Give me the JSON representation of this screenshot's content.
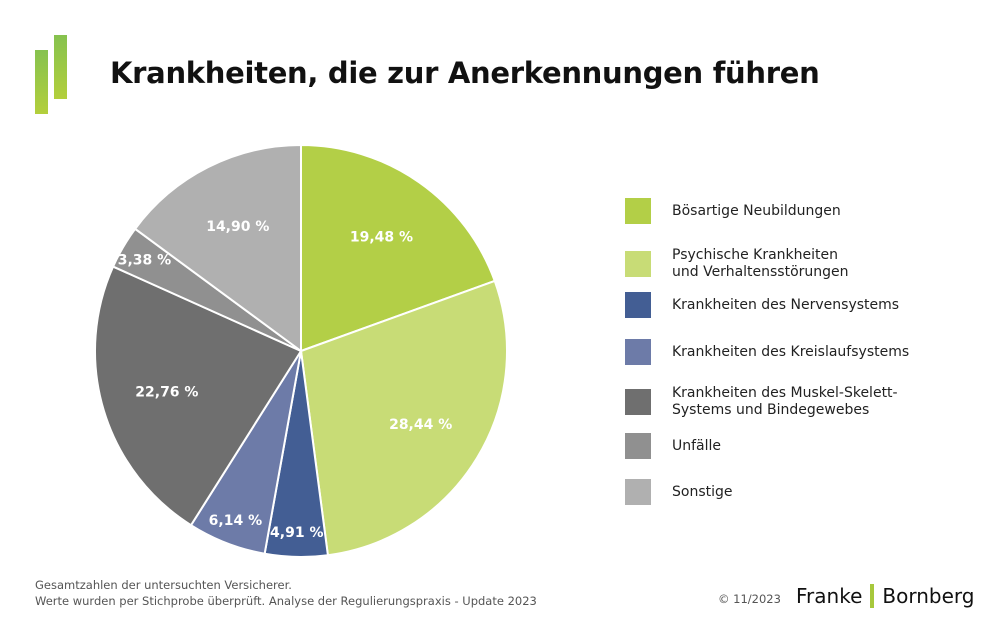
{
  "title": "Krankheiten, die zur Anerkennungen führen",
  "chart_data": {
    "type": "pie",
    "start": "top, clockwise",
    "slices": [
      {
        "name": "Bösartige Neubildungen",
        "value": 19.48,
        "label": "19,48 %",
        "color": "#b3cf47"
      },
      {
        "name": "Psychische Krankheiten\nund Verhaltensstörungen",
        "value": 28.44,
        "label": "28,44 %",
        "color": "#c8dc76"
      },
      {
        "name": "Krankheiten des Nervensystems",
        "value": 4.91,
        "label": "4,91 %",
        "color": "#435e94"
      },
      {
        "name": "Krankheiten des Kreislaufsystems",
        "value": 6.14,
        "label": "6,14 %",
        "color": "#6d7ba8"
      },
      {
        "name": "Krankheiten des Muskel-Skelett-\nSystems und Bindegewebes",
        "value": 22.76,
        "label": "22,76 %",
        "color": "#6f6f6f"
      },
      {
        "name": "Unfälle",
        "value": 3.38,
        "label": "3,38 %",
        "color": "#909090"
      },
      {
        "name": "Sonstige",
        "value": 14.9,
        "label": "14,90 %",
        "color": "#b0b0b0"
      }
    ],
    "legend_position": "right"
  },
  "footer": {
    "line1": "Gesamtzahlen der untersuchten Versicherer.",
    "line2": "Werte wurden per Stichprobe überprüft. Analyse der Regulierungspraxis - Update 2023",
    "copyright": "© 11/2023",
    "brand_left": "Franke",
    "brand_right": "Bornberg"
  }
}
